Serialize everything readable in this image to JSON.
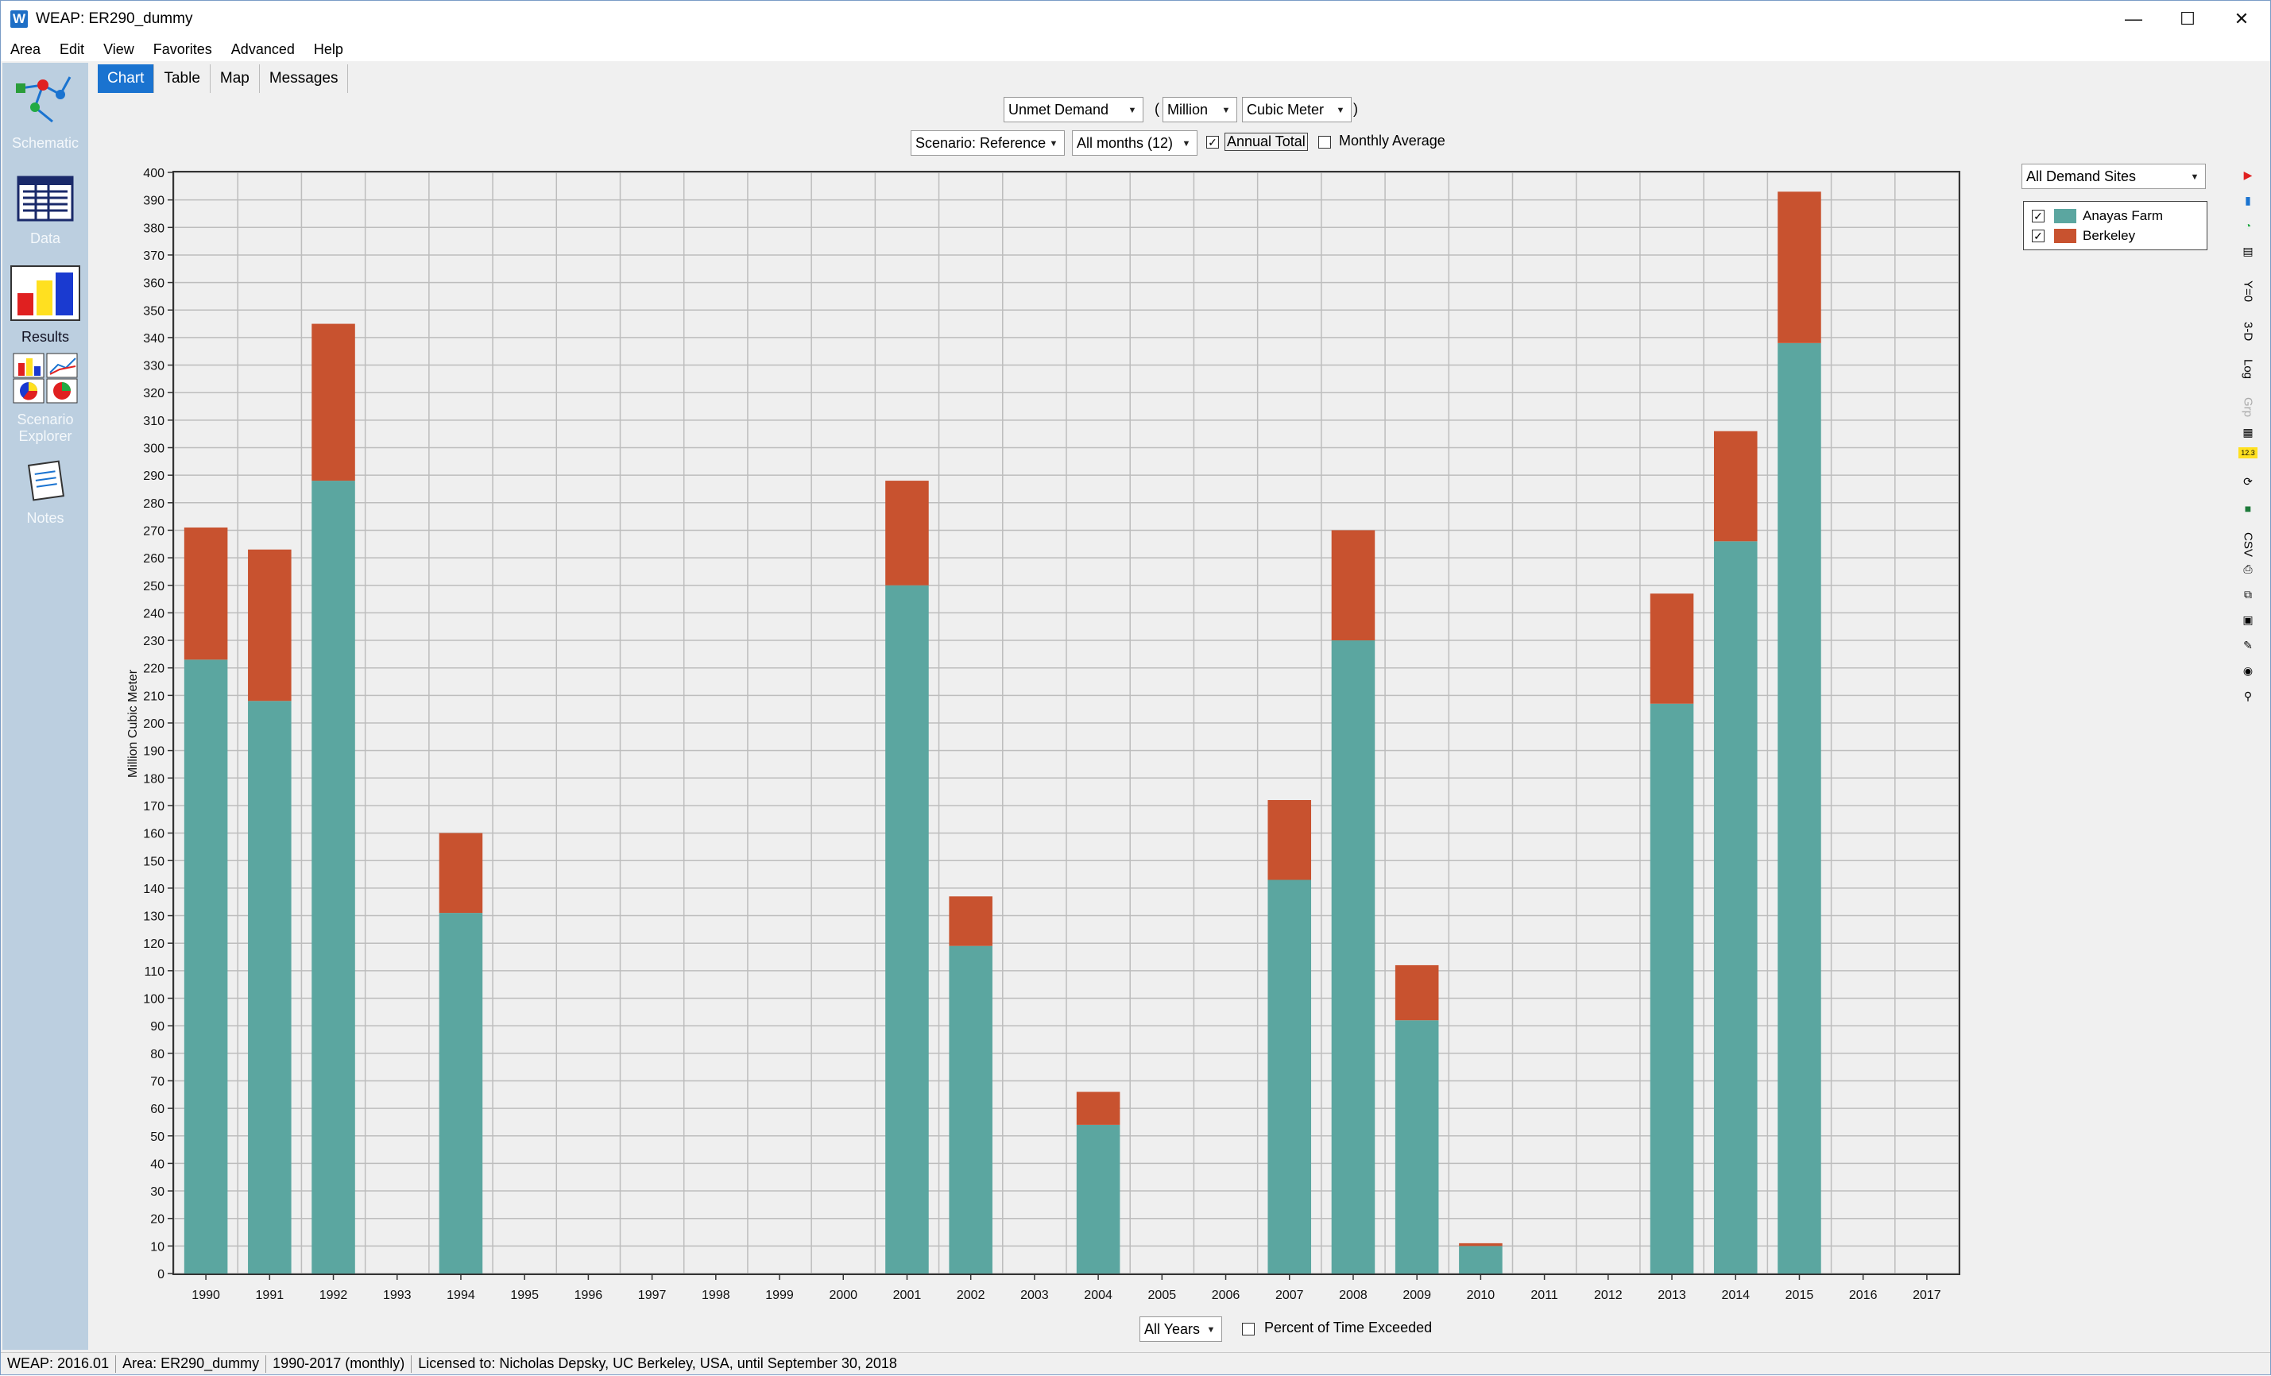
{
  "window": {
    "app_letter": "W",
    "title": "WEAP: ER290_dummy"
  },
  "menu": [
    "Area",
    "Edit",
    "View",
    "Favorites",
    "Advanced",
    "Help"
  ],
  "sidebar": [
    {
      "label": "Schematic",
      "icon": "schematic-icon"
    },
    {
      "label": "Data",
      "icon": "data-icon"
    },
    {
      "label": "Results",
      "icon": "results-icon"
    },
    {
      "label": "Scenario Explorer",
      "icon": "scenario-explorer-icon"
    },
    {
      "label": "Notes",
      "icon": "notes-icon"
    }
  ],
  "tabs": [
    "Chart",
    "Table",
    "Map",
    "Messages"
  ],
  "controls": {
    "variable": "Unmet Demand",
    "paren_open": "(",
    "scale": "Million",
    "unit": "Cubic Meter",
    "paren_close": ")",
    "scenario": "Scenario: Reference",
    "months": "All months (12)",
    "annual_total_label": "Annual Total",
    "annual_total_checked": true,
    "monthly_average_label": "Monthly Average",
    "monthly_average_checked": false,
    "demand_sites": "All Demand Sites",
    "years": "All Years",
    "percent_exceeded_label": "Percent of Time Exceeded",
    "percent_exceeded_checked": false
  },
  "colors": {
    "anayas": "#5ba6a0",
    "berkeley": "#c8522f",
    "tab_active": "#1a73d0"
  },
  "chart_data": {
    "type": "bar",
    "stacked": true,
    "ylabel": "Million Cubic Meter",
    "ylim": [
      0,
      400
    ],
    "ytick_step": 10,
    "grid": true,
    "legend_position": "right",
    "categories": [
      "1990",
      "1991",
      "1992",
      "1993",
      "1994",
      "1995",
      "1996",
      "1997",
      "1998",
      "1999",
      "2000",
      "2001",
      "2002",
      "2003",
      "2004",
      "2005",
      "2006",
      "2007",
      "2008",
      "2009",
      "2010",
      "2011",
      "2012",
      "2013",
      "2014",
      "2015",
      "2016",
      "2017"
    ],
    "series": [
      {
        "name": "Anayas Farm",
        "values": [
          223,
          208,
          288,
          0,
          131,
          0,
          0,
          0,
          0,
          0,
          0,
          250,
          119,
          0,
          54,
          0,
          0,
          143,
          230,
          92,
          10,
          0,
          0,
          207,
          266,
          338,
          0,
          0
        ]
      },
      {
        "name": "Berkeley",
        "values": [
          48,
          55,
          57,
          0,
          29,
          0,
          0,
          0,
          0,
          0,
          0,
          38,
          18,
          0,
          12,
          0,
          0,
          29,
          40,
          20,
          1,
          0,
          0,
          40,
          40,
          55,
          0,
          0
        ]
      }
    ]
  },
  "status": [
    "WEAP: 2016.01",
    "Area: ER290_dummy",
    "1990-2017 (monthly)",
    "Licensed to: Nicholas Depsky, UC Berkeley, USA, until September 30, 2018"
  ],
  "toolbar_icons": [
    "chart-type-icon",
    "bar-chart-icon",
    "pie-chart-icon",
    "pattern-icon",
    "y-zero-icon",
    "3d-icon",
    "log-icon",
    "group-icon",
    "gridlines-icon",
    "number-format-icon",
    "sync-icon",
    "excel-icon",
    "csv-icon",
    "print-icon",
    "copy-icon",
    "save-icon",
    "notes-icon",
    "camera-icon",
    "key-icon"
  ],
  "toolbar_text": {
    "y-zero-icon": "Y=0",
    "3d-icon": "3-D",
    "log-icon": "Log",
    "group-icon": "Grp",
    "number-format-icon": "12.3",
    "csv-icon": "CSV"
  }
}
